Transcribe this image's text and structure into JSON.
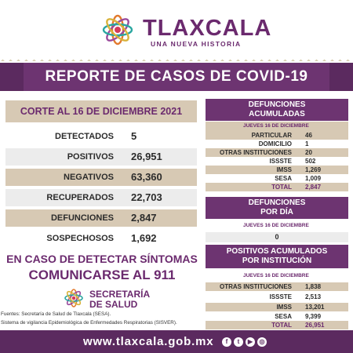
{
  "brand": {
    "title": "TLAXCALA",
    "subtitle": "UNA NUEVA HISTORIA"
  },
  "banner": "REPORTE DE CASOS DE COVID-19",
  "corte": "CORTE AL 16 DE DICIEMBRE 2021",
  "stats": [
    {
      "label": "DETECTADOS",
      "value": "5"
    },
    {
      "label": "POSITIVOS",
      "value": "26,951"
    },
    {
      "label": "NEGATIVOS",
      "value": "63,360"
    },
    {
      "label": "RECUPERADOS",
      "value": "22,703"
    },
    {
      "label": "DEFUNCIONES",
      "value": "2,847"
    },
    {
      "label": "SOSPECHOSOS",
      "value": "1,692"
    }
  ],
  "cta": {
    "line1": "EN CASO DE DETECTAR SÍNTOMAS",
    "line2": "COMUNICARSE AL 911"
  },
  "sesa": {
    "line1": "SECRETARÍA",
    "line2": "DE SALUD"
  },
  "fuentes": {
    "line1": "Fuentes:  Secretaría de Salud de Tlaxcala (SESA).",
    "line2": "Sistema de vigilancia Epidemiológica de Enfermedades Respiratorias (SISVER)."
  },
  "defunciones_acumuladas": {
    "title_line1": "DEFUNCIONES",
    "title_line2": "ACUMULADAS",
    "date": "JUEVES 16 DE DICIEMBRE",
    "rows": [
      {
        "label": "PARTICULAR",
        "value": "46"
      },
      {
        "label": "DOMICILIO",
        "value": "1"
      },
      {
        "label": "OTRAS INSTITUCIONES",
        "value": "20"
      },
      {
        "label": "ISSSTE",
        "value": "502"
      },
      {
        "label": "IMSS",
        "value": "1,269"
      },
      {
        "label": "SESA",
        "value": "1,009"
      },
      {
        "label": "TOTAL",
        "value": "2,847"
      }
    ]
  },
  "defunciones_dia": {
    "title_line1": "DEFUNCIONES",
    "title_line2": "POR DÍA",
    "date": "JUEVES 16 DE DICIEMBRE",
    "value": "0"
  },
  "positivos_institucion": {
    "title_line1": "POSITIVOS ACUMULADOS",
    "title_line2": "POR INSTITUCIÓN",
    "date": "JUEVES 16 DE DICIEMBRE",
    "rows": [
      {
        "label": "OTRAS INSTITUCIONES",
        "value": "1,838"
      },
      {
        "label": "ISSSTE",
        "value": "2,513"
      },
      {
        "label": "IMSS",
        "value": "13,201"
      },
      {
        "label": "SESA",
        "value": "9,399"
      },
      {
        "label": "TOTAL",
        "value": "26,951"
      }
    ]
  },
  "footer": {
    "url": "www.tlaxcala.gob.mx",
    "social_icons": [
      "facebook-icon",
      "twitter-icon",
      "youtube-icon",
      "instagram-icon"
    ]
  },
  "colors": {
    "purple": "#6d3471",
    "purple_dark": "#5b2a5f",
    "beige": "#d7c9b4",
    "light_gray": "#ececec"
  }
}
